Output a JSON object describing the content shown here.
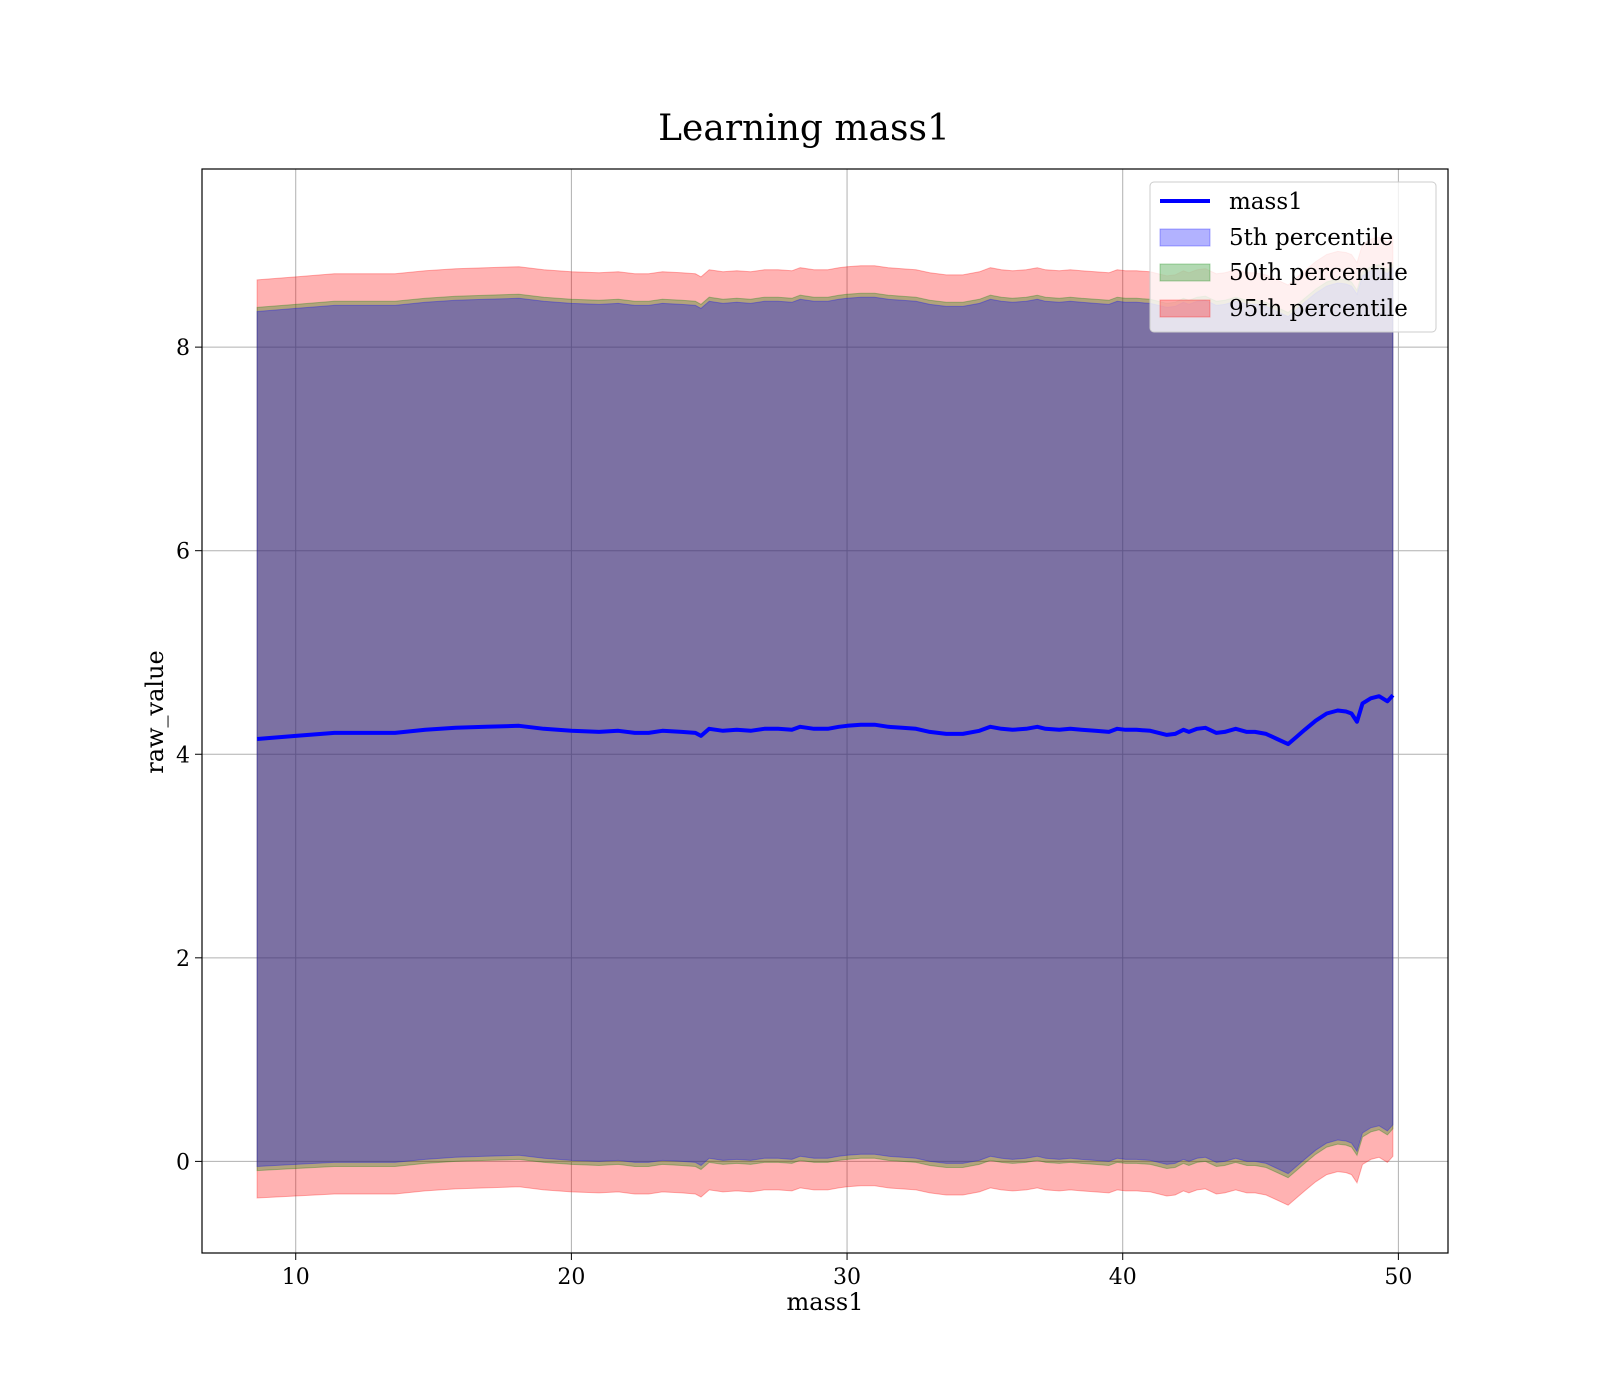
{
  "chart_data": {
    "type": "area",
    "title": "Learning mass1",
    "xlabel": "mass1",
    "ylabel": "raw_value",
    "xlim": [
      6.6,
      51.8
    ],
    "ylim": [
      -0.9,
      9.75
    ],
    "xticks": [
      10,
      20,
      30,
      40,
      50
    ],
    "yticks": [
      0,
      2,
      4,
      6,
      8
    ],
    "grid": true,
    "legend_position": "top-right",
    "colors": {
      "line": "#0000ff",
      "p5": "#0000ff",
      "p50": "#008000",
      "p95": "#ff0000"
    },
    "x": [
      8.6,
      10.0,
      11.4,
      12.5,
      13.6,
      14.7,
      15.8,
      16.9,
      18.1,
      19.0,
      20.0,
      21.0,
      21.7,
      22.3,
      22.8,
      23.3,
      24.0,
      24.5,
      24.7,
      25.0,
      25.5,
      26.0,
      26.5,
      27.0,
      27.5,
      28.0,
      28.3,
      28.8,
      29.3,
      29.7,
      30.0,
      30.5,
      31.0,
      31.5,
      32.0,
      32.5,
      33.0,
      33.6,
      34.2,
      34.8,
      35.2,
      35.6,
      36.0,
      36.5,
      36.9,
      37.2,
      37.7,
      38.1,
      38.5,
      39.0,
      39.5,
      39.8,
      40.1,
      40.5,
      41.0,
      41.6,
      41.9,
      42.2,
      42.4,
      42.7,
      43.0,
      43.4,
      43.7,
      44.1,
      44.5,
      44.8,
      45.2,
      45.6,
      46.0,
      46.3,
      46.6,
      47.0,
      47.4,
      47.8,
      48.1,
      48.3,
      48.5,
      48.7,
      49.0,
      49.3,
      49.6,
      49.8
    ],
    "series": [
      {
        "name": "mass1",
        "type": "line",
        "values": [
          4.15,
          4.18,
          4.21,
          4.21,
          4.21,
          4.24,
          4.26,
          4.27,
          4.28,
          4.25,
          4.23,
          4.22,
          4.23,
          4.21,
          4.21,
          4.23,
          4.22,
          4.21,
          4.18,
          4.25,
          4.23,
          4.24,
          4.23,
          4.25,
          4.25,
          4.24,
          4.27,
          4.25,
          4.25,
          4.27,
          4.28,
          4.29,
          4.29,
          4.27,
          4.26,
          4.25,
          4.22,
          4.2,
          4.2,
          4.23,
          4.27,
          4.25,
          4.24,
          4.25,
          4.27,
          4.25,
          4.24,
          4.25,
          4.24,
          4.23,
          4.22,
          4.25,
          4.24,
          4.24,
          4.23,
          4.19,
          4.2,
          4.24,
          4.22,
          4.25,
          4.26,
          4.21,
          4.22,
          4.25,
          4.22,
          4.22,
          4.2,
          4.15,
          4.1,
          4.17,
          4.24,
          4.33,
          4.4,
          4.43,
          4.42,
          4.4,
          4.32,
          4.5,
          4.55,
          4.57,
          4.52,
          4.58
        ]
      },
      {
        "name": "5th percentile",
        "type": "band",
        "lower": [
          -0.05,
          -0.03,
          -0.01,
          -0.01,
          -0.01,
          0.02,
          0.04,
          0.05,
          0.06,
          0.03,
          0.01,
          0.0,
          0.01,
          -0.01,
          -0.01,
          0.01,
          0.0,
          -0.01,
          -0.04,
          0.03,
          0.01,
          0.02,
          0.01,
          0.03,
          0.03,
          0.02,
          0.05,
          0.03,
          0.03,
          0.05,
          0.06,
          0.07,
          0.07,
          0.05,
          0.04,
          0.03,
          0.0,
          -0.02,
          -0.02,
          0.01,
          0.05,
          0.03,
          0.02,
          0.03,
          0.05,
          0.03,
          0.02,
          0.03,
          0.02,
          0.01,
          0.0,
          0.03,
          0.02,
          0.02,
          0.01,
          -0.03,
          -0.02,
          0.02,
          0.0,
          0.03,
          0.04,
          -0.01,
          0.0,
          0.03,
          0.0,
          0.0,
          -0.02,
          -0.07,
          -0.12,
          -0.05,
          0.02,
          0.11,
          0.18,
          0.21,
          0.2,
          0.18,
          0.1,
          0.28,
          0.33,
          0.35,
          0.3,
          0.36
        ],
        "upper": [
          8.35,
          8.38,
          8.41,
          8.41,
          8.41,
          8.44,
          8.46,
          8.47,
          8.48,
          8.45,
          8.43,
          8.42,
          8.43,
          8.41,
          8.41,
          8.43,
          8.42,
          8.41,
          8.38,
          8.45,
          8.43,
          8.44,
          8.43,
          8.45,
          8.45,
          8.44,
          8.47,
          8.45,
          8.45,
          8.47,
          8.48,
          8.49,
          8.49,
          8.47,
          8.46,
          8.45,
          8.42,
          8.4,
          8.4,
          8.43,
          8.47,
          8.45,
          8.44,
          8.45,
          8.47,
          8.45,
          8.44,
          8.45,
          8.44,
          8.43,
          8.42,
          8.45,
          8.44,
          8.44,
          8.43,
          8.39,
          8.4,
          8.44,
          8.42,
          8.45,
          8.46,
          8.41,
          8.42,
          8.45,
          8.42,
          8.42,
          8.4,
          8.35,
          8.3,
          8.37,
          8.44,
          8.53,
          8.6,
          8.63,
          8.62,
          8.6,
          8.52,
          8.7,
          8.75,
          8.77,
          8.72,
          8.78
        ]
      },
      {
        "name": "50th percentile",
        "type": "band",
        "lower": [
          -0.09,
          -0.07,
          -0.05,
          -0.05,
          -0.05,
          -0.02,
          0.0,
          0.01,
          0.02,
          -0.01,
          -0.03,
          -0.04,
          -0.03,
          -0.05,
          -0.05,
          -0.03,
          -0.04,
          -0.05,
          -0.08,
          -0.01,
          -0.03,
          -0.02,
          -0.03,
          -0.01,
          -0.01,
          -0.02,
          0.01,
          -0.01,
          -0.01,
          0.01,
          0.02,
          0.03,
          0.03,
          0.01,
          0.0,
          -0.01,
          -0.04,
          -0.06,
          -0.06,
          -0.03,
          0.01,
          -0.01,
          -0.02,
          -0.01,
          0.01,
          -0.01,
          -0.02,
          -0.01,
          -0.02,
          -0.03,
          -0.04,
          -0.01,
          -0.02,
          -0.02,
          -0.03,
          -0.07,
          -0.06,
          -0.02,
          -0.04,
          -0.01,
          0.0,
          -0.05,
          -0.04,
          -0.01,
          -0.04,
          -0.04,
          -0.06,
          -0.11,
          -0.16,
          -0.09,
          -0.02,
          0.07,
          0.14,
          0.17,
          0.16,
          0.14,
          0.06,
          0.24,
          0.29,
          0.31,
          0.26,
          0.32
        ],
        "upper": [
          8.39,
          8.42,
          8.45,
          8.45,
          8.45,
          8.48,
          8.5,
          8.51,
          8.52,
          8.49,
          8.47,
          8.46,
          8.47,
          8.45,
          8.45,
          8.47,
          8.46,
          8.45,
          8.42,
          8.49,
          8.47,
          8.48,
          8.47,
          8.49,
          8.49,
          8.48,
          8.51,
          8.49,
          8.49,
          8.51,
          8.52,
          8.53,
          8.53,
          8.51,
          8.5,
          8.49,
          8.46,
          8.44,
          8.44,
          8.47,
          8.51,
          8.49,
          8.48,
          8.49,
          8.51,
          8.49,
          8.48,
          8.49,
          8.48,
          8.47,
          8.46,
          8.49,
          8.48,
          8.48,
          8.47,
          8.43,
          8.44,
          8.48,
          8.46,
          8.49,
          8.5,
          8.45,
          8.46,
          8.49,
          8.46,
          8.46,
          8.44,
          8.39,
          8.34,
          8.41,
          8.48,
          8.57,
          8.64,
          8.67,
          8.66,
          8.64,
          8.56,
          8.74,
          8.79,
          8.81,
          8.76,
          8.82
        ]
      },
      {
        "name": "95th percentile",
        "type": "band",
        "lower": [
          -0.36,
          -0.34,
          -0.32,
          -0.32,
          -0.32,
          -0.29,
          -0.27,
          -0.26,
          -0.25,
          -0.28,
          -0.3,
          -0.31,
          -0.3,
          -0.32,
          -0.32,
          -0.3,
          -0.31,
          -0.32,
          -0.35,
          -0.28,
          -0.3,
          -0.29,
          -0.3,
          -0.28,
          -0.28,
          -0.29,
          -0.26,
          -0.28,
          -0.28,
          -0.26,
          -0.25,
          -0.24,
          -0.24,
          -0.26,
          -0.27,
          -0.28,
          -0.31,
          -0.33,
          -0.33,
          -0.3,
          -0.26,
          -0.28,
          -0.29,
          -0.28,
          -0.26,
          -0.28,
          -0.29,
          -0.28,
          -0.29,
          -0.3,
          -0.31,
          -0.28,
          -0.29,
          -0.29,
          -0.3,
          -0.34,
          -0.33,
          -0.29,
          -0.31,
          -0.28,
          -0.27,
          -0.32,
          -0.31,
          -0.28,
          -0.31,
          -0.31,
          -0.33,
          -0.38,
          -0.43,
          -0.36,
          -0.29,
          -0.2,
          -0.13,
          -0.1,
          -0.11,
          -0.13,
          -0.21,
          -0.03,
          0.02,
          0.04,
          -0.01,
          0.05
        ],
        "upper": [
          8.66,
          8.69,
          8.72,
          8.72,
          8.72,
          8.75,
          8.77,
          8.78,
          8.79,
          8.76,
          8.74,
          8.73,
          8.74,
          8.72,
          8.72,
          8.74,
          8.73,
          8.72,
          8.69,
          8.76,
          8.74,
          8.75,
          8.74,
          8.76,
          8.76,
          8.75,
          8.78,
          8.76,
          8.76,
          8.78,
          8.79,
          8.8,
          8.8,
          8.78,
          8.77,
          8.76,
          8.73,
          8.71,
          8.71,
          8.74,
          8.78,
          8.76,
          8.75,
          8.76,
          8.78,
          8.76,
          8.75,
          8.76,
          8.75,
          8.74,
          8.73,
          8.76,
          8.75,
          8.75,
          8.74,
          8.7,
          8.71,
          8.75,
          8.73,
          8.76,
          8.77,
          8.72,
          8.73,
          8.76,
          8.73,
          8.73,
          8.71,
          8.66,
          8.61,
          8.68,
          8.75,
          8.84,
          8.91,
          8.94,
          8.93,
          8.91,
          8.83,
          9.01,
          9.06,
          9.08,
          9.03,
          9.09
        ]
      }
    ],
    "legend": [
      "mass1",
      "5th percentile",
      "50th percentile",
      "95th percentile"
    ]
  }
}
